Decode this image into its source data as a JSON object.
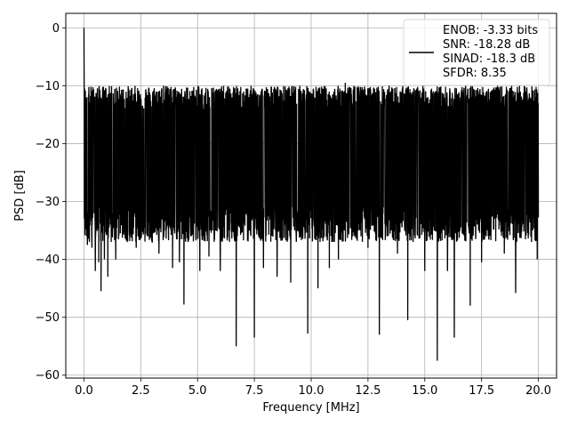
{
  "chart_data": {
    "type": "line",
    "xlabel": "Frequency [MHz]",
    "ylabel": "PSD [dB]",
    "xlim": [
      -0.8,
      20.8
    ],
    "ylim": [
      -60.5,
      2.5
    ],
    "xticks": [
      0,
      2.5,
      5,
      7.5,
      10,
      12.5,
      15,
      17.5,
      20
    ],
    "xtick_labels": [
      "0.0",
      "2.5",
      "5.0",
      "7.5",
      "10.0",
      "12.5",
      "15.0",
      "17.5",
      "20.0"
    ],
    "yticks": [
      0,
      -10,
      -20,
      -30,
      -40,
      -50,
      -60
    ],
    "ytick_labels": [
      "0",
      "−10",
      "−20",
      "−30",
      "−40",
      "−50",
      "−60"
    ],
    "grid": true,
    "legend_position": "top-right",
    "series": [
      {
        "name": "ENOB: -3.33 bits\nSNR: -18.28 dB\nSINAD: -18.3 dB\nSFDR: 8.35",
        "legend_lines": [
          "ENOB: -3.33 bits",
          "SNR: -18.28 dB",
          "SINAD: -18.3 dB",
          "SFDR: 8.35"
        ],
        "color": "#000000",
        "x_range": [
          0,
          20
        ],
        "points": [
          [
            0.0,
            0.0
          ],
          [
            0.01,
            -12.0
          ],
          [
            0.05,
            -21.0
          ],
          [
            0.1,
            -29.0
          ],
          [
            0.15,
            -37.5
          ],
          [
            0.2,
            -11.5
          ],
          [
            0.25,
            -33.0
          ],
          [
            0.3,
            -25.0
          ],
          [
            0.35,
            -38.0
          ],
          [
            0.4,
            -14.5
          ],
          [
            0.5,
            -42.0
          ],
          [
            0.55,
            -17.0
          ],
          [
            0.65,
            -40.5
          ],
          [
            0.75,
            -45.5
          ],
          [
            0.9,
            -40.0
          ],
          [
            1.05,
            -43.0
          ],
          [
            1.2,
            -37.0
          ],
          [
            1.4,
            -40.0
          ],
          [
            1.6,
            -35.5
          ],
          [
            2.3,
            -38.0
          ],
          [
            3.0,
            -37.0
          ],
          [
            3.3,
            -39.0
          ],
          [
            3.5,
            -10.0
          ],
          [
            3.9,
            -41.5
          ],
          [
            4.2,
            -40.5
          ],
          [
            4.4,
            -47.8
          ],
          [
            4.6,
            -12.5
          ],
          [
            5.1,
            -42.0
          ],
          [
            5.5,
            -39.5
          ],
          [
            6.0,
            -42.0
          ],
          [
            6.7,
            -55.0
          ],
          [
            7.0,
            -14.0
          ],
          [
            7.5,
            -53.5
          ],
          [
            7.9,
            -41.5
          ],
          [
            8.5,
            -43.0
          ],
          [
            9.1,
            -44.0
          ],
          [
            9.5,
            -10.0
          ],
          [
            9.85,
            -52.8
          ],
          [
            10.3,
            -45.0
          ],
          [
            10.5,
            -10.5
          ],
          [
            10.8,
            -41.5
          ],
          [
            11.2,
            -40.0
          ],
          [
            11.5,
            -9.5
          ],
          [
            12.0,
            -36.5
          ],
          [
            12.5,
            -38.0
          ],
          [
            13.0,
            -53.0
          ],
          [
            13.5,
            -11.0
          ],
          [
            13.8,
            -39.0
          ],
          [
            14.25,
            -50.5
          ],
          [
            15.0,
            -42.0
          ],
          [
            15.3,
            -10.5
          ],
          [
            15.55,
            -57.5
          ],
          [
            16.0,
            -42.0
          ],
          [
            16.3,
            -53.5
          ],
          [
            16.8,
            -10.0
          ],
          [
            17.0,
            -48.0
          ],
          [
            17.5,
            -40.5
          ],
          [
            18.0,
            -11.0
          ],
          [
            18.5,
            -39.0
          ],
          [
            19.0,
            -45.8
          ],
          [
            19.4,
            -11.5
          ],
          [
            19.7,
            -37.0
          ],
          [
            19.95,
            -40.0
          ]
        ],
        "noise_floor_band": [
          -14.0,
          -34.0
        ],
        "typical_level": -22.0
      }
    ]
  }
}
